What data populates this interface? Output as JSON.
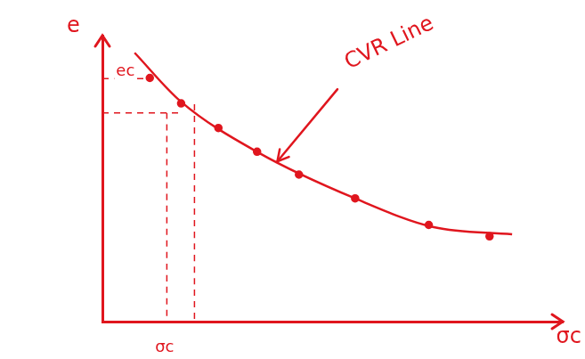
{
  "chart_data": {
    "type": "scatter",
    "xlabel": "σc",
    "ylabel": "e",
    "xlim": [
      0,
      10
    ],
    "ylim": [
      0,
      10
    ],
    "grid": false,
    "tick_labels": false,
    "color": "#e0161e",
    "series": [
      {
        "type": "scatter",
        "marker": "circle",
        "line_style": "none",
        "x": [
          1.03,
          1.71,
          2.52,
          3.36,
          4.27,
          5.49,
          7.09,
          8.41
        ],
        "values": [
          8.52,
          7.63,
          6.77,
          5.94,
          5.14,
          4.31,
          3.38,
          2.98
        ]
      },
      {
        "type": "line",
        "marker": "none",
        "line_style": "solid",
        "x": [
          0.7,
          1.7,
          3.4,
          5.5,
          7.2,
          8.9
        ],
        "values": [
          9.4,
          7.7,
          5.9,
          4.3,
          3.3,
          3.05
        ]
      },
      {
        "type": "line",
        "marker": "none",
        "line_style": "dashed",
        "x": [
          0,
          1.0
        ],
        "values": [
          8.5,
          8.5
        ]
      },
      {
        "type": "line",
        "marker": "none",
        "line_style": "dashed",
        "x": [
          0,
          1.7
        ],
        "values": [
          7.3,
          7.3
        ]
      },
      {
        "type": "line",
        "marker": "none",
        "line_style": "dashed",
        "x": [
          1.4,
          1.4
        ],
        "values": [
          7.3,
          0
        ]
      },
      {
        "type": "line",
        "marker": "none",
        "line_style": "dashed",
        "x": [
          2.0,
          2.0
        ],
        "values": [
          7.6,
          0
        ]
      }
    ],
    "annotations": [
      {
        "text": "CVR Line",
        "x": 5.3,
        "y": 9.0,
        "arrow_to": [
          3.8,
          5.6
        ]
      },
      {
        "text": "ec",
        "x": 0.5,
        "y": 8.75
      },
      {
        "text": "σc",
        "x": 1.35,
        "y": -0.9
      }
    ]
  }
}
